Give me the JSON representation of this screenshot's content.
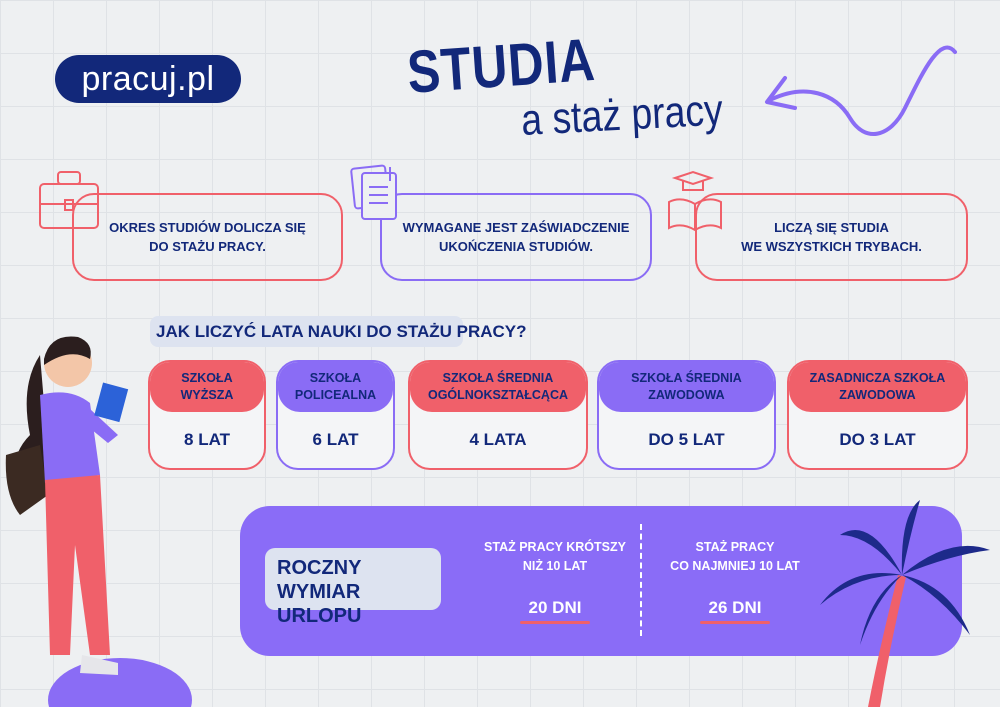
{
  "logo": {
    "text": "pracuj.pl"
  },
  "header": {
    "title": "STUDIA",
    "subtitle": "a staż pracy"
  },
  "info_boxes": [
    {
      "icon": "briefcase-icon",
      "text": "OKRES STUDIÓW DOLICZA SIĘ\nDO STAŻU PRACY.",
      "color": "#f0606a"
    },
    {
      "icon": "document-icon",
      "text": "WYMAGANE JEST ZAŚWIADCZENIE\nUKOŃCZENIA STUDIÓW.",
      "color": "#8a6cf5"
    },
    {
      "icon": "graduation-book-icon",
      "text": "LICZĄ SIĘ STUDIA\nWE WSZYSTKICH TRYBACH.",
      "color": "#f0606a"
    }
  ],
  "question": "JAK LICZYĆ LATA NAUKI DO STAŻU PRACY?",
  "schools": [
    {
      "name": "SZKOŁA\nWYŻSZA",
      "value": "8 LAT",
      "color": "#f0606a"
    },
    {
      "name": "SZKOŁA\nPOLICEALNA",
      "value": "6 LAT",
      "color": "#8a6cf5"
    },
    {
      "name": "SZKOŁA ŚREDNIA\nOGÓLNOKSZTAŁCĄCA",
      "value": "4 LATA",
      "color": "#f0606a"
    },
    {
      "name": "SZKOŁA ŚREDNIA\nZAWODOWA",
      "value": "DO 5 LAT",
      "color": "#8a6cf5"
    },
    {
      "name": "ZASADNICZA SZKOŁA\nZAWODOWA",
      "value": "DO 3 LAT",
      "color": "#f0606a"
    }
  ],
  "vacation": {
    "label": "ROCZNY\nWYMIAR URLOPU",
    "columns": [
      {
        "condition": "STAŻ PRACY KRÓTSZY\nNIŻ 10 LAT",
        "days": "20 DNI"
      },
      {
        "condition": "STAŻ PRACY\nCO NAJMNIEJ 10 LAT",
        "days": "26 DNI"
      }
    ]
  },
  "colors": {
    "navy": "#12287a",
    "red": "#f0606a",
    "purple": "#8a6cf5",
    "background": "#eef0f2"
  }
}
